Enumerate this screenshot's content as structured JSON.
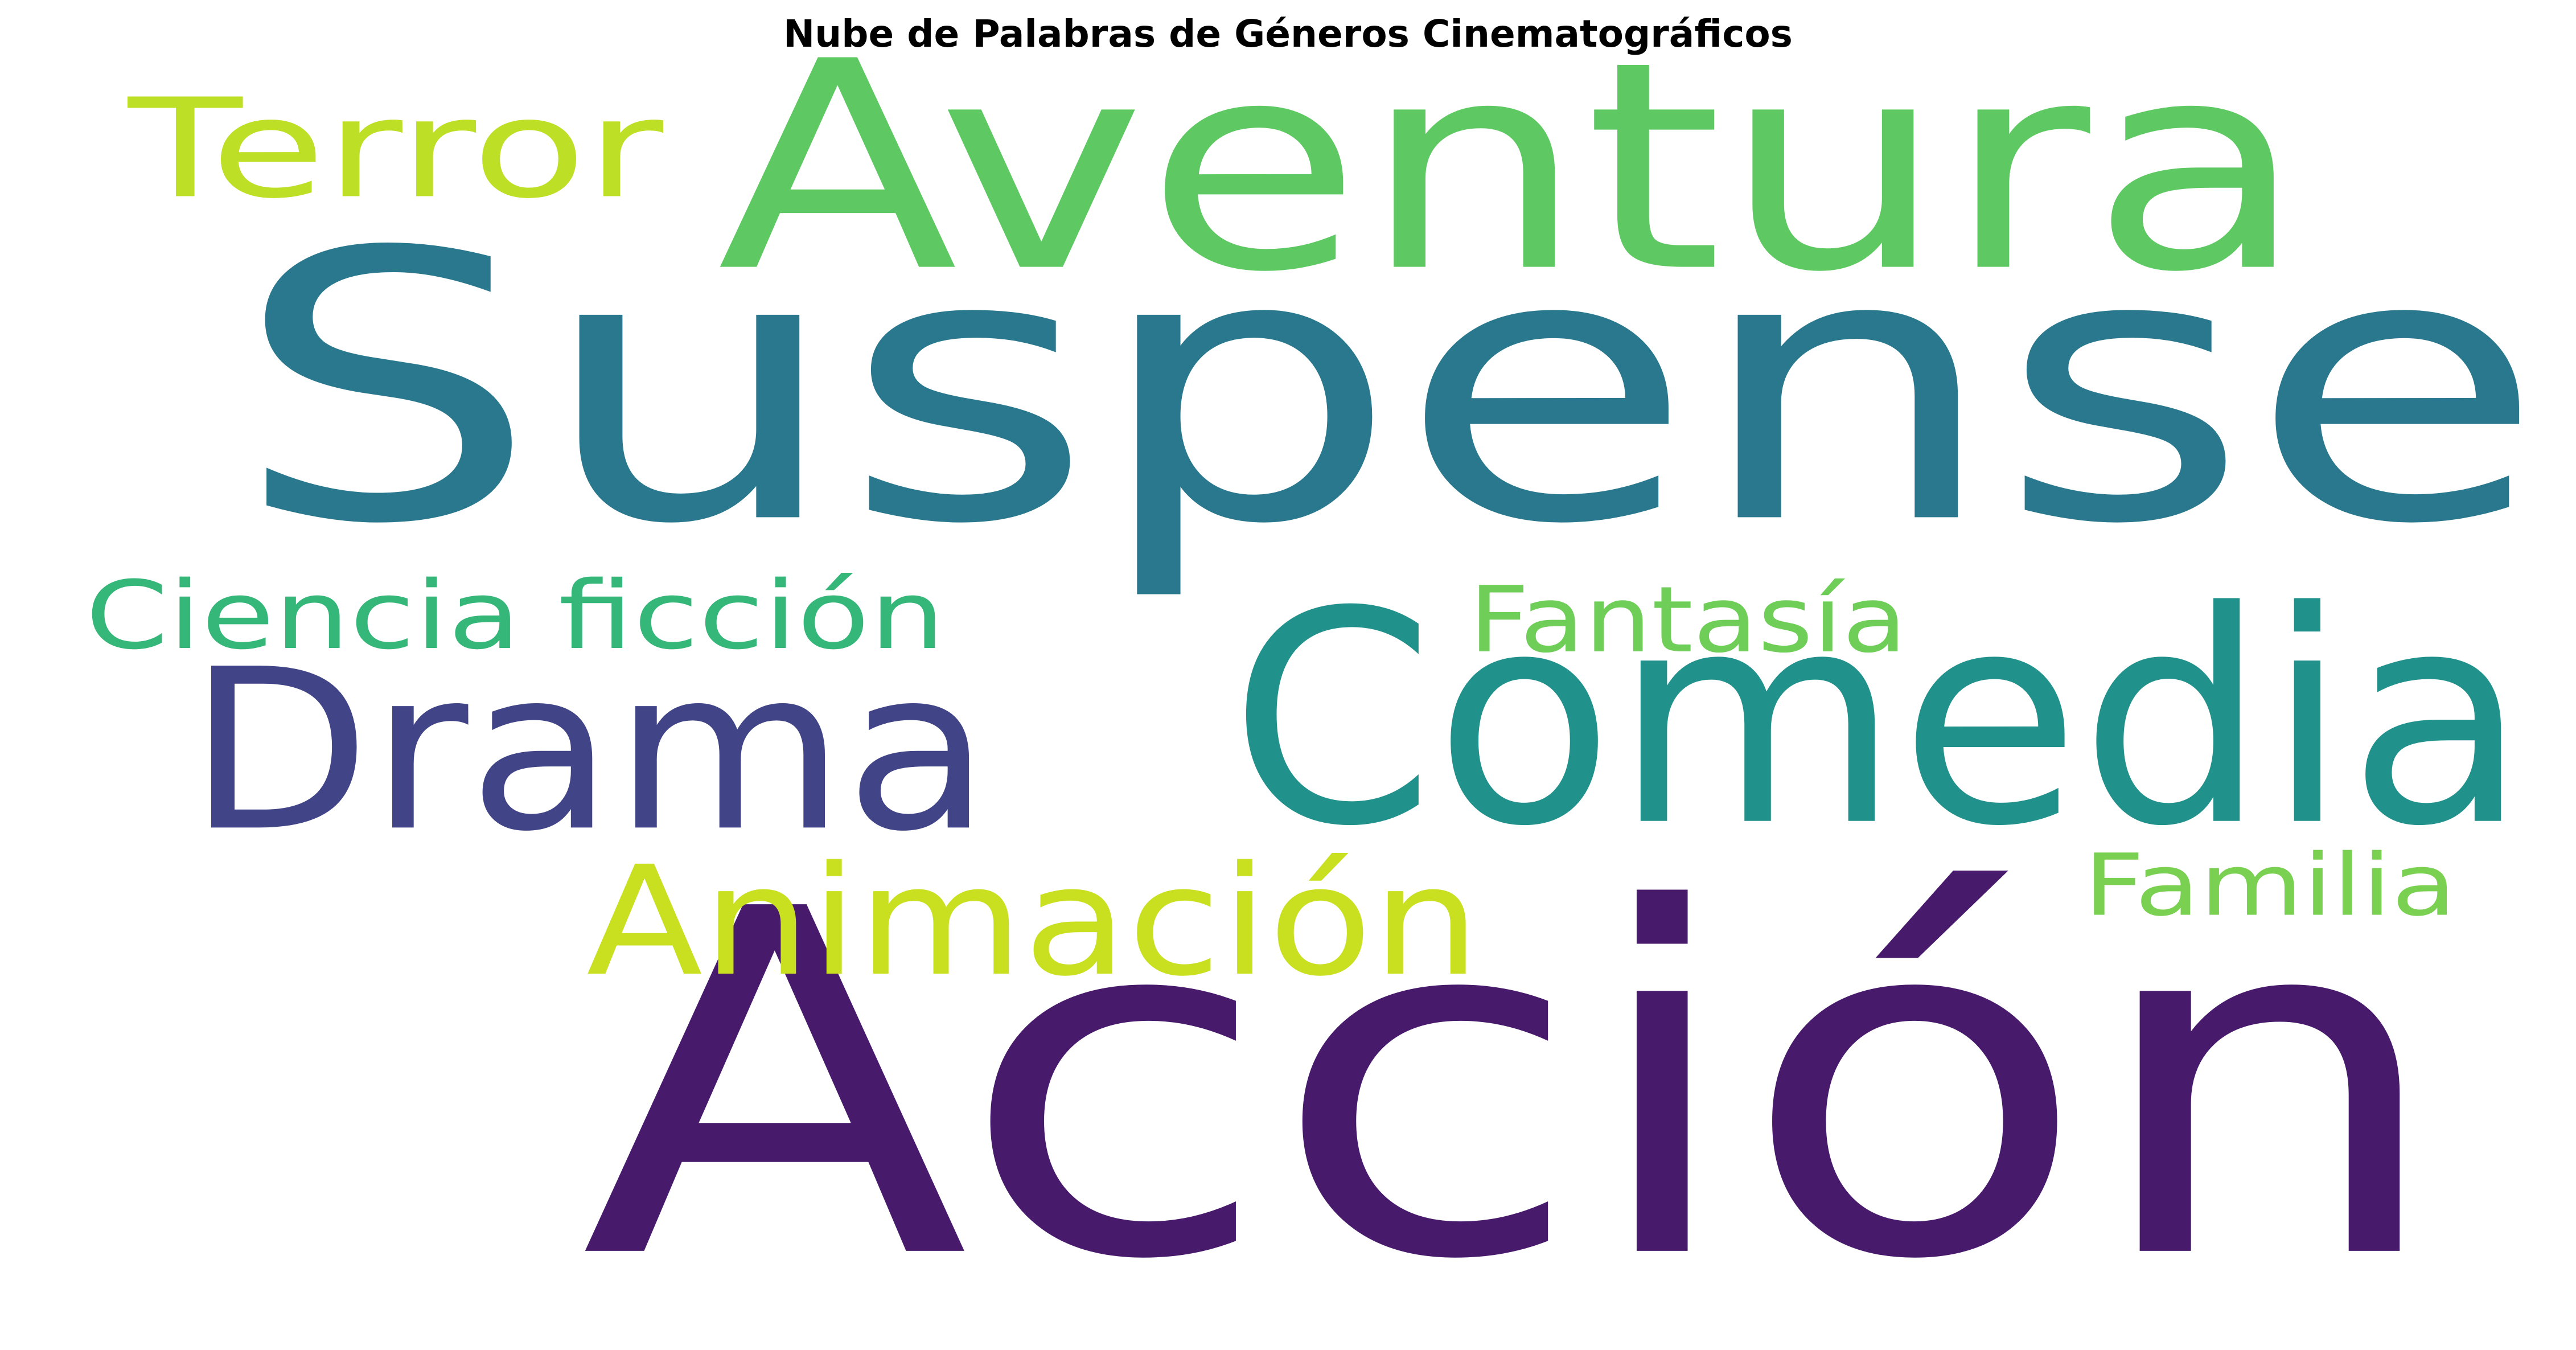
{
  "chart_data": {
    "type": "wordcloud",
    "title": "Nube de Palabras de Géneros Cinematográficos",
    "background": "#ffffff",
    "colormap": "viridis",
    "words": [
      {
        "text": "Acción",
        "color": "#481a6c"
      },
      {
        "text": "Suspense",
        "color": "#2a788e"
      },
      {
        "text": "Aventura",
        "color": "#5ec962"
      },
      {
        "text": "Comedia",
        "color": "#21918c"
      },
      {
        "text": "Drama",
        "color": "#414487"
      },
      {
        "text": "Animación",
        "color": "#c8e020"
      },
      {
        "text": "Terror",
        "color": "#bddf26"
      },
      {
        "text": "Ciencia ficción",
        "color": "#35b779"
      },
      {
        "text": "Fantasía",
        "color": "#6ece58"
      },
      {
        "text": "Familia",
        "color": "#7ad151"
      }
    ]
  }
}
